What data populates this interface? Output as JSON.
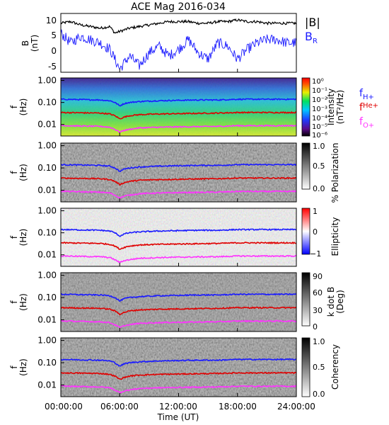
{
  "title": "ACE Mag 2016-034",
  "x_axis": {
    "label": "Time (UT)",
    "ticks": [
      "00:00:00",
      "06:00:00",
      "12:00:00",
      "18:00:00",
      "24:00:00"
    ],
    "range_hours": [
      0,
      24
    ]
  },
  "legends": {
    "field": [
      {
        "label": "|B|",
        "color": "#000000"
      },
      {
        "label": "B",
        "sub": "R",
        "color": "#1a1aff"
      }
    ],
    "lines": [
      {
        "label": "f",
        "sub": "H+",
        "color": "#1a1aff"
      },
      {
        "label": "f",
        "sub": "He+",
        "color": "#e00000"
      },
      {
        "label": "f",
        "sub": "O+",
        "color": "#ff33ff"
      }
    ]
  },
  "panels": [
    {
      "id": "field",
      "ylabel_top": "B",
      "ylabel_bottom": "(nT)",
      "yticks": [
        "10",
        "5",
        "0",
        "-5"
      ],
      "ylim": [
        -6,
        12
      ]
    },
    {
      "id": "intensity",
      "ylabel_top": "f",
      "ylabel_bottom": "(Hz)",
      "yticks": [
        "1.00",
        "0.10",
        "0.01"
      ],
      "colorbar_label": "Intensity",
      "colorbar_units": "(nT²/Hz)",
      "colorbar_ticks": [
        "10⁰",
        "10⁻¹",
        "10⁻²",
        "10⁻³",
        "10⁻⁴",
        "10⁻⁵",
        "10⁻⁶"
      ]
    },
    {
      "id": "polarization",
      "ylabel_top": "f",
      "ylabel_bottom": "(Hz)",
      "yticks": [
        "1.00",
        "0.10",
        "0.01"
      ],
      "colorbar_label": "% Polarization",
      "colorbar_units": "",
      "colorbar_ticks": [
        "1.0",
        "0.5",
        "0.0"
      ]
    },
    {
      "id": "ellipticity",
      "ylabel_top": "f",
      "ylabel_bottom": "(Hz)",
      "yticks": [
        "1.00",
        "0.10",
        "0.01"
      ],
      "colorbar_label": "Ellipticity",
      "colorbar_units": "",
      "colorbar_ticks": [
        "1",
        "0",
        "−1"
      ]
    },
    {
      "id": "kdotb",
      "ylabel_top": "f",
      "ylabel_bottom": "(Hz)",
      "yticks": [
        "1.00",
        "0.10",
        "0.01"
      ],
      "colorbar_label": "k dot B",
      "colorbar_units": "(Deg)",
      "colorbar_ticks": [
        "90",
        "60",
        "30",
        "0"
      ]
    },
    {
      "id": "coherency",
      "ylabel_top": "f",
      "ylabel_bottom": "(Hz)",
      "yticks": [
        "1.00",
        "0.10",
        "0.01"
      ],
      "colorbar_label": "Coherency",
      "colorbar_units": "",
      "colorbar_ticks": [
        "1.0",
        "0.5",
        "0.0"
      ]
    }
  ],
  "chart_data": {
    "type": "line",
    "title": "ACE Mag 2016-034",
    "xlabel": "Time (UT)",
    "xlim_hours": [
      0,
      24
    ],
    "field_panel": {
      "ylabel": "B (nT)",
      "ylim": [
        -6,
        12
      ],
      "series": [
        {
          "name": "|B|",
          "color": "#000000",
          "x_hours": [
            0,
            1,
            2,
            3,
            4,
            5,
            5.5,
            6,
            6.5,
            7,
            8,
            9,
            10,
            11,
            12,
            13,
            14,
            15,
            16,
            17,
            18,
            19,
            20,
            21,
            22,
            23,
            24
          ],
          "values": [
            9,
            9.5,
            8.5,
            8,
            7.5,
            8,
            6,
            6.5,
            7,
            7.5,
            8,
            8.5,
            9,
            9.5,
            9.5,
            9.5,
            9,
            9,
            9.5,
            9.5,
            10,
            9.5,
            9.5,
            9,
            9,
            9,
            9
          ]
        },
        {
          "name": "B_R",
          "color": "#1a1aff",
          "x_hours": [
            0,
            1,
            2,
            3,
            4,
            5,
            5.5,
            6,
            6.5,
            7,
            8,
            9,
            10,
            11,
            12,
            13,
            14,
            15,
            16,
            17,
            18,
            19,
            20,
            21,
            22,
            23,
            24
          ],
          "values": [
            6,
            3,
            5,
            4,
            3,
            1,
            -2,
            -5,
            -3,
            -1,
            -4,
            0,
            2,
            -1,
            1,
            4,
            0,
            -2,
            3,
            2,
            -2,
            1,
            3,
            4,
            4,
            3,
            3
          ]
        }
      ]
    },
    "spectrogram_panels": {
      "ylabel": "f (Hz)",
      "scale": "log",
      "ylim": [
        0.003,
        1.3
      ],
      "panels": [
        "Intensity",
        "% Polarization",
        "Ellipticity",
        "k dot B",
        "Coherency"
      ],
      "series": [
        {
          "name": "f_H+",
          "color": "#1a1aff",
          "x_hours": [
            0,
            2,
            4,
            5,
            5.5,
            6,
            6.5,
            7,
            8,
            10,
            12,
            14,
            16,
            18,
            20,
            22,
            24
          ],
          "values": [
            0.14,
            0.135,
            0.13,
            0.12,
            0.1,
            0.07,
            0.09,
            0.1,
            0.11,
            0.12,
            0.125,
            0.13,
            0.13,
            0.14,
            0.14,
            0.14,
            0.14
          ]
        },
        {
          "name": "f_He+",
          "color": "#e00000",
          "x_hours": [
            0,
            2,
            4,
            5,
            5.5,
            6,
            6.5,
            7,
            8,
            10,
            12,
            14,
            16,
            18,
            20,
            22,
            24
          ],
          "values": [
            0.035,
            0.034,
            0.033,
            0.03,
            0.025,
            0.018,
            0.022,
            0.025,
            0.028,
            0.03,
            0.031,
            0.032,
            0.033,
            0.035,
            0.035,
            0.035,
            0.035
          ]
        },
        {
          "name": "f_O+",
          "color": "#ff33ff",
          "x_hours": [
            0,
            2,
            4,
            5,
            5.5,
            6,
            6.5,
            7,
            8,
            10,
            12,
            14,
            16,
            18,
            20,
            22,
            24
          ],
          "values": [
            0.009,
            0.0085,
            0.0082,
            0.0075,
            0.006,
            0.0045,
            0.0055,
            0.006,
            0.007,
            0.0075,
            0.0078,
            0.008,
            0.0082,
            0.0088,
            0.0088,
            0.0088,
            0.0088
          ]
        }
      ]
    }
  }
}
